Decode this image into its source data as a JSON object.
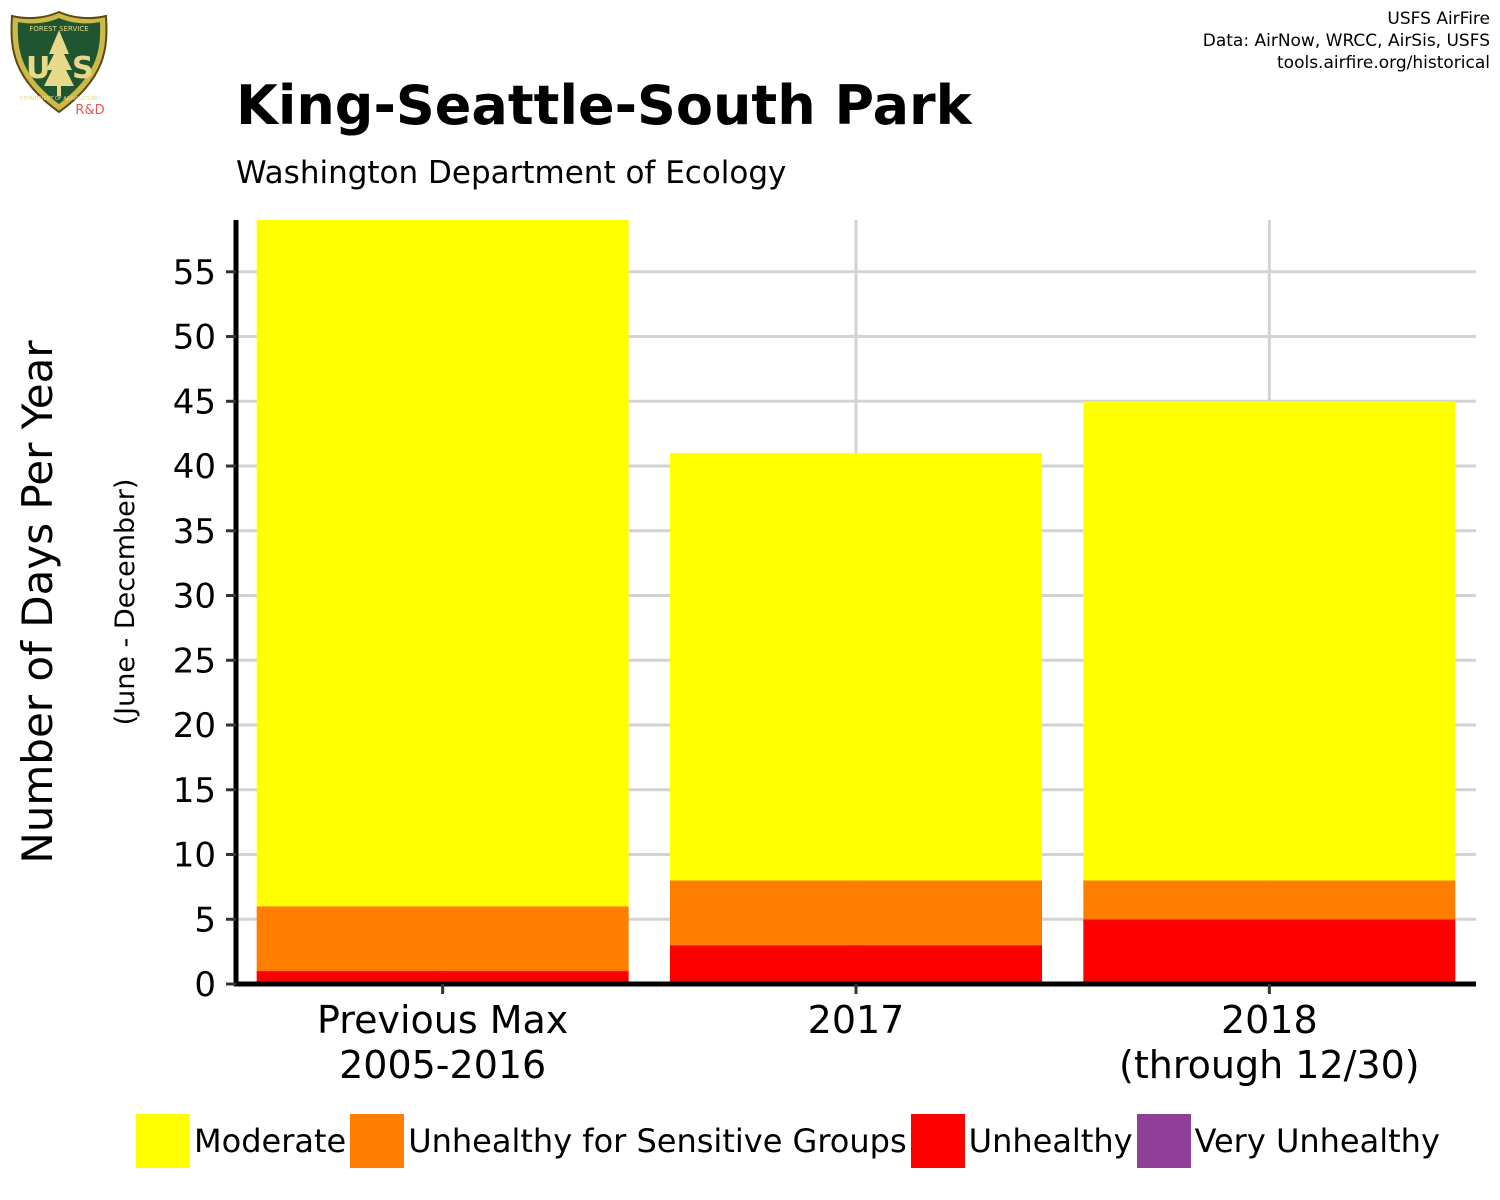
{
  "header": {
    "title": "King-Seattle-South Park",
    "subtitle": "Washington Department of Ecology",
    "credits": [
      "USFS AirFire",
      "Data: AirNow, WRCC, AirSis, USFS",
      "tools.airfire.org/historical"
    ]
  },
  "logo": {
    "top_text": "FOREST SERVICE",
    "letters_left": "U",
    "letters_right": "S",
    "bottom_text": "DEPARTMENT OF AGRICULTURE",
    "tag": "R&D"
  },
  "chart_data": {
    "type": "bar",
    "stacked": true,
    "title": "King-Seattle-South Park",
    "subtitle": "Washington Department of Ecology",
    "ylabel": "Number of Days Per Year",
    "ylabel2": "(June - December)",
    "xlabel": "",
    "categories": [
      [
        "Previous Max",
        "2005-2016"
      ],
      [
        "2017"
      ],
      [
        "2018",
        "(through 12/30)"
      ]
    ],
    "yticks": [
      0,
      5,
      10,
      15,
      20,
      25,
      30,
      35,
      40,
      45,
      50,
      55
    ],
    "ylim": [
      0,
      59
    ],
    "grid": true,
    "legend_position": "bottom",
    "series": [
      {
        "name": "Unhealthy",
        "color": "#ff0000",
        "values": [
          1,
          3,
          5
        ]
      },
      {
        "name": "Unhealthy for Sensitive Groups",
        "color": "#ff7e00",
        "values": [
          5,
          5,
          3
        ]
      },
      {
        "name": "Moderate",
        "color": "#ffff00",
        "values": [
          53,
          33,
          37
        ]
      },
      {
        "name": "Very Unhealthy",
        "color": "#8f3f97",
        "values": [
          0,
          0,
          0
        ]
      }
    ],
    "legend": [
      {
        "name": "Moderate",
        "color": "#ffff00"
      },
      {
        "name": "Unhealthy for Sensitive Groups",
        "color": "#ff7e00"
      },
      {
        "name": "Unhealthy",
        "color": "#ff0000"
      },
      {
        "name": "Very Unhealthy",
        "color": "#8f3f97"
      }
    ]
  }
}
